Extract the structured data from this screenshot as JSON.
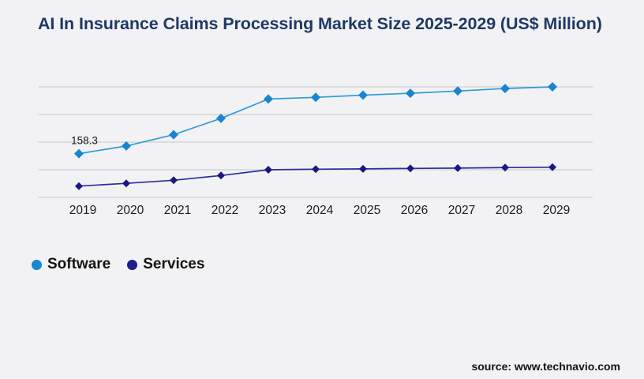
{
  "title": "AI In Insurance Claims Processing Market Size 2025-2029 (US$ Million)",
  "source": "source: www.technavio.com",
  "legend": [
    {
      "label": "Software",
      "color": "#1b86d3"
    },
    {
      "label": "Services",
      "color": "#1c1c8a"
    }
  ],
  "colors": {
    "background": "#f2f2f4",
    "grid": "#cfcfd2",
    "title": "#1f3865",
    "tick_label": "#1c1c1e"
  },
  "chart_data": {
    "type": "line",
    "title": "AI In Insurance Claims Processing Market Size 2025-2029 (US$ Million)",
    "xlabel": "",
    "ylabel": "",
    "x": [
      2019,
      2020,
      2021,
      2022,
      2023,
      2024,
      2025,
      2026,
      2027,
      2028,
      2029
    ],
    "series": [
      {
        "name": "Software",
        "color": "#2f9bda",
        "marker_color": "#1b84d0",
        "values": [
          158.3,
          186,
          227,
          286,
          356,
          362,
          370,
          377,
          385,
          394,
          400
        ]
      },
      {
        "name": "Services",
        "color": "#2c2c9c",
        "marker_color": "#191980",
        "values": [
          41,
          51,
          62,
          79,
          100,
          102,
          103,
          105,
          106,
          108,
          109
        ]
      }
    ],
    "annotations": [
      {
        "series": "Software",
        "x": 2019,
        "label": "158.3"
      }
    ],
    "ylim": [
      0,
      400
    ],
    "gridlines": [
      0,
      100,
      200,
      300,
      400
    ],
    "grid": "horizontal-only",
    "y_axis_labels_visible": false,
    "marker_shape": "diamond",
    "legend_position": "bottom-left"
  }
}
